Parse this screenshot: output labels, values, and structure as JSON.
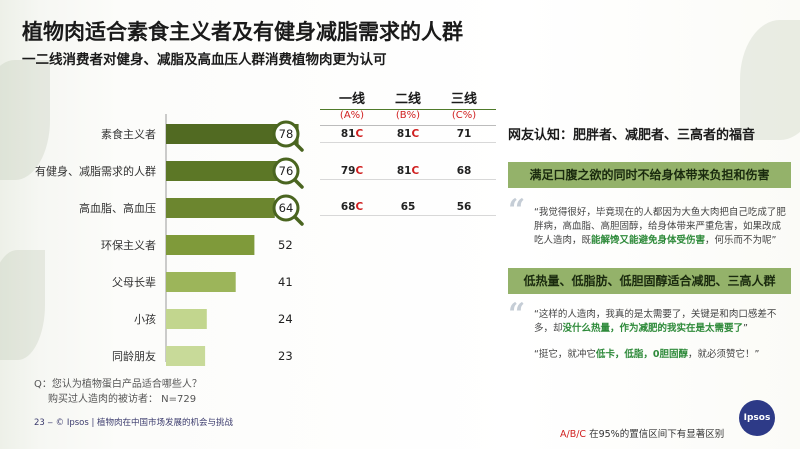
{
  "title": "植物肉适合素食主义者及有健身减脂需求的人群",
  "subtitle": "一二线消费者对健身、减脂及高血压人群消费植物肉更为认可",
  "chart_data": {
    "type": "bar",
    "orientation": "horizontal",
    "categories": [
      "素食主义者",
      "有健身、减脂需求的人群",
      "高血脂、高血压",
      "环保主义者",
      "父母长辈",
      "小孩",
      "同龄朋友"
    ],
    "values": [
      78,
      76,
      64,
      52,
      41,
      24,
      23
    ],
    "value_labels": [
      "78",
      "76",
      "64",
      "52",
      "41",
      "24",
      "23"
    ],
    "highlighted": [
      true,
      true,
      true,
      false,
      false,
      false,
      false
    ],
    "title": "",
    "xlabel": "",
    "ylabel": "",
    "xlim": [
      0,
      100
    ],
    "grid": false,
    "legend": "none",
    "colors": {
      "dark": "#516a22",
      "mid": "#7f9a3a",
      "light": "#c2d68e",
      "ring": "#4a6520"
    }
  },
  "tiers": {
    "columns": [
      {
        "name": "一线",
        "code": "(A%)"
      },
      {
        "name": "二线",
        "code": "(B%)"
      },
      {
        "name": "三线",
        "code": "(C%)"
      }
    ],
    "rows": [
      [
        {
          "v": "81",
          "s": "C"
        },
        {
          "v": "81",
          "s": "C"
        },
        {
          "v": "71",
          "s": ""
        }
      ],
      [
        {
          "v": "79",
          "s": "C"
        },
        {
          "v": "81",
          "s": "C"
        },
        {
          "v": "68",
          "s": ""
        }
      ],
      [
        {
          "v": "68",
          "s": "C"
        },
        {
          "v": "65",
          "s": ""
        },
        {
          "v": "56",
          "s": ""
        }
      ]
    ]
  },
  "right": {
    "title": "网友认知：肥胖者、减肥者、三高者的福音",
    "banner1": "满足口腹之欲的同时不给身体带来负担和伤害",
    "quote1": {
      "before": "“我觉得很好，毕竟现在的人都因为大鱼大肉把自己吃成了肥胖病，高血脂、高胆固醇，给身体带来严重危害，如果改成吃人造肉，既",
      "highlight": "能解馋又能避免身体受伤害",
      "after": "，何乐而不为呢”"
    },
    "banner2": "低热量、低脂肪、低胆固醇适合减肥、三高人群",
    "quote2": {
      "before": "“这样的人造肉，我真的是太需要了，关键是和肉口感差不多，却",
      "highlight": "没什么热量，作为减肥的我实在是太需要了",
      "after": "”"
    },
    "quote3": {
      "p1": "“挺它，就冲它",
      "h1": "低卡，低脂，0胆固醇",
      "p2": "，就必须赞它！”"
    }
  },
  "footnote": {
    "line1": "Q：您认为植物蛋白产品适合哪些人？",
    "line2": "购买过人造肉的被访者： N=729"
  },
  "sig": {
    "codes": "A/B/C",
    "text": "在95%的置信区间下有显著区别"
  },
  "page": "23 ‒  © Ipsos | 植物肉在中国市场发展的机会与挑战",
  "logo_text": "Ipsos"
}
